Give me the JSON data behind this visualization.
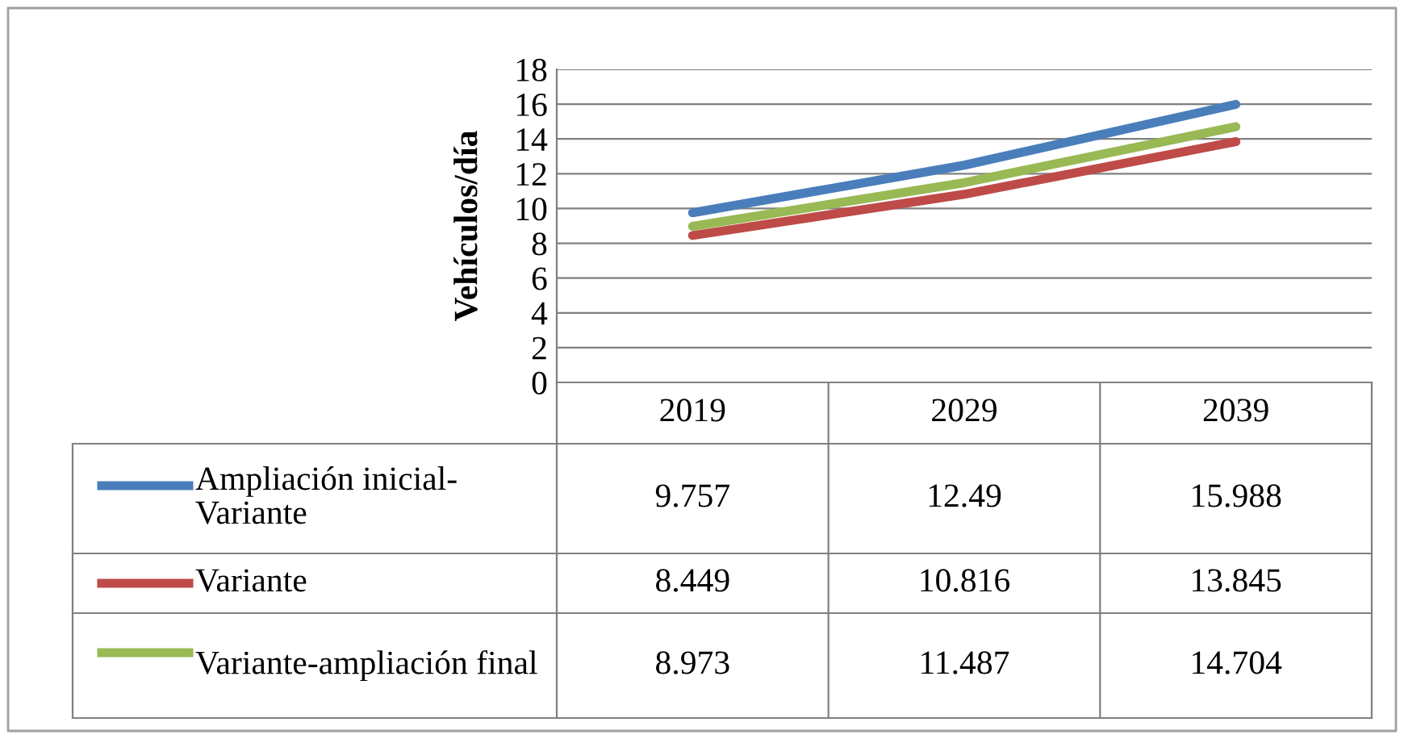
{
  "chart_data": {
    "type": "line",
    "ylabel": "Vehículos/día",
    "categories": [
      "2019",
      "2029",
      "2039"
    ],
    "series": [
      {
        "name": "Ampliación inicial-Variante",
        "color": "#4a7ebb",
        "values": [
          9.757,
          12.49,
          15.988
        ]
      },
      {
        "name": "Variante",
        "color": "#be4b48",
        "values": [
          8.449,
          10.816,
          13.845
        ]
      },
      {
        "name": "Variante-ampliación final",
        "color": "#98b954",
        "values": [
          8.973,
          11.487,
          14.704
        ]
      }
    ],
    "ylim": [
      0,
      18
    ],
    "yticks": [
      0,
      2,
      4,
      6,
      8,
      10,
      12,
      14,
      16,
      18
    ],
    "grid": "y",
    "legend": "bottom",
    "data_labels": true,
    "marker": "none",
    "line_style": "solid"
  }
}
